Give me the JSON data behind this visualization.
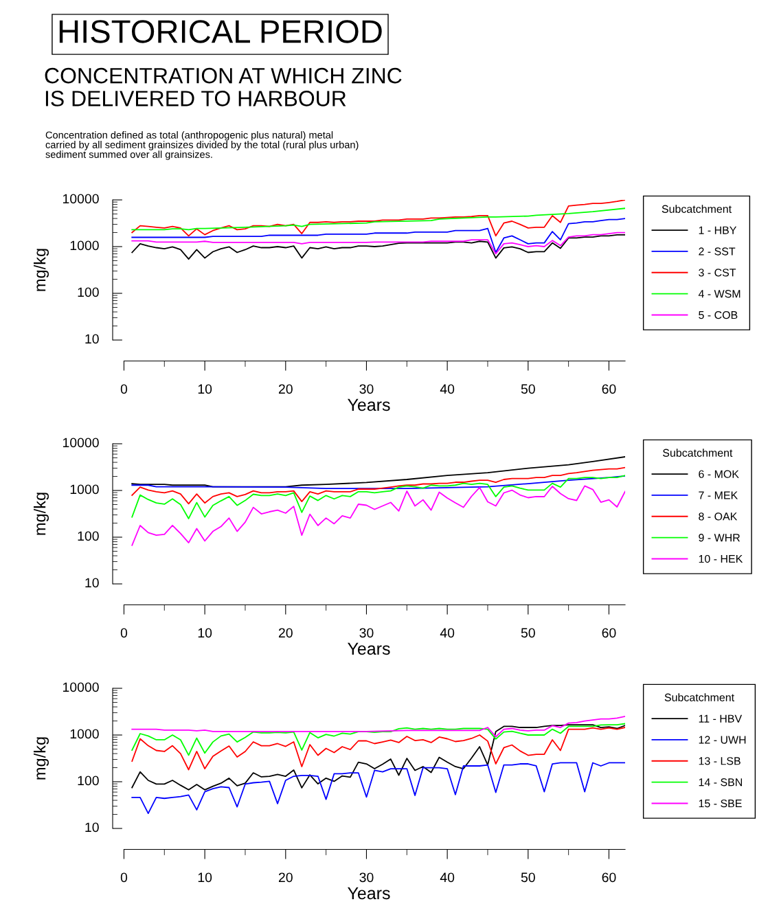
{
  "chart_data": [
    {
      "type": "line",
      "title": "HISTORICAL PERIOD",
      "subtitle": "CONCENTRATION AT WHICH ZINC\nIS DELIVERED TO HARBOUR",
      "annotations": [
        "Concentration defined as total (anthropogenic plus natural) metal\ncarried by all sediment grainsizes divided by the total (rural plus urban)\nsediment summed over all grainsizes."
      ],
      "xlabel": "Years",
      "ylabel": "mg/kg",
      "legend_title": "Subcatchment",
      "legend": "right",
      "log": "y",
      "line_style": "solid",
      "xlim": [
        -1.4,
        62
      ],
      "xticks": [
        0,
        10,
        20,
        30,
        40,
        50,
        60
      ],
      "ylim": [
        10,
        10000
      ],
      "yticks": [
        10,
        100,
        1000,
        10000
      ],
      "x": [
        1,
        2,
        3,
        4,
        5,
        6,
        7,
        8,
        9,
        10,
        11,
        12,
        13,
        14,
        15,
        16,
        17,
        18,
        19,
        20,
        21,
        22,
        23,
        24,
        25,
        26,
        27,
        28,
        29,
        30,
        31,
        32,
        33,
        34,
        35,
        36,
        37,
        38,
        39,
        40,
        41,
        42,
        43,
        44,
        45,
        46,
        47,
        48,
        49,
        50,
        51,
        52,
        53,
        54,
        55,
        56,
        57,
        58,
        59,
        60,
        61,
        62
      ],
      "series": [
        {
          "name": "1 - HBY",
          "color": "#000000",
          "values": [
            750,
            1150,
            1030,
            950,
            900,
            990,
            860,
            540,
            860,
            570,
            775,
            900,
            990,
            750,
            860,
            1030,
            950,
            950,
            1000,
            950,
            1030,
            570,
            950,
            900,
            990,
            900,
            950,
            950,
            1030,
            1030,
            1000,
            1030,
            1100,
            1180,
            1200,
            1200,
            1200,
            1200,
            1200,
            1200,
            1250,
            1250,
            1200,
            1300,
            1250,
            570,
            940,
            990,
            900,
            750,
            780,
            780,
            1200,
            920,
            1530,
            1530,
            1600,
            1600,
            1700,
            1700,
            1780,
            1780
          ]
        },
        {
          "name": "2 - SST",
          "color": "#0000ff",
          "x": [
            1,
            10,
            11,
            17,
            18,
            24,
            25,
            30,
            31,
            35,
            36,
            40,
            41,
            44,
            45,
            46,
            47,
            48,
            49,
            50,
            51,
            52,
            53,
            54,
            55,
            56,
            57,
            58,
            59,
            60,
            61,
            62
          ],
          "values": [
            1580,
            1580,
            1650,
            1650,
            1750,
            1750,
            1850,
            1850,
            1950,
            1950,
            2050,
            2050,
            2200,
            2200,
            2450,
            750,
            1530,
            1700,
            1400,
            1150,
            1200,
            1200,
            2100,
            1400,
            3100,
            3200,
            3400,
            3400,
            3600,
            3800,
            3800,
            4000
          ]
        },
        {
          "name": "3 - CST",
          "color": "#ff0000",
          "values": [
            2000,
            2800,
            2700,
            2600,
            2500,
            2700,
            2500,
            1700,
            2400,
            1800,
            2200,
            2500,
            2800,
            2300,
            2400,
            2800,
            2800,
            2700,
            3000,
            2800,
            3000,
            1900,
            3300,
            3300,
            3400,
            3300,
            3400,
            3400,
            3500,
            3500,
            3500,
            3700,
            3700,
            3700,
            3900,
            3900,
            3900,
            4100,
            4100,
            4200,
            4300,
            4300,
            4400,
            4600,
            4600,
            1700,
            3200,
            3500,
            3000,
            2500,
            2600,
            2600,
            4600,
            3300,
            7400,
            7700,
            8000,
            8400,
            8400,
            8800,
            9300,
            10000
          ]
        },
        {
          "name": "4 - WSM",
          "color": "#00ff00",
          "x": [
            1,
            5,
            6,
            7,
            8,
            9,
            10,
            15,
            20,
            21,
            22,
            23,
            30,
            31,
            38,
            39,
            45,
            46,
            50,
            51,
            55,
            58,
            62
          ],
          "values": [
            2300,
            2300,
            2400,
            2400,
            2300,
            2450,
            2450,
            2600,
            2800,
            2900,
            2700,
            3000,
            3200,
            3400,
            3600,
            3900,
            4300,
            4300,
            4500,
            4700,
            5100,
            5600,
            6600
          ]
        },
        {
          "name": "5 - COB",
          "color": "#ff00ff",
          "x": [
            1,
            3,
            4,
            9,
            10,
            11,
            21,
            22,
            23,
            30,
            31,
            37,
            38,
            42,
            43,
            44,
            45,
            46,
            47,
            48,
            49,
            50,
            51,
            52,
            53,
            54,
            55,
            56,
            57,
            58,
            59,
            60,
            61,
            62
          ],
          "values": [
            1330,
            1330,
            1250,
            1250,
            1300,
            1230,
            1230,
            1150,
            1230,
            1230,
            1250,
            1250,
            1300,
            1300,
            1400,
            1400,
            1400,
            700,
            1150,
            1200,
            1100,
            1000,
            1050,
            1000,
            1350,
            1050,
            1600,
            1700,
            1700,
            1800,
            1800,
            1900,
            2000,
            2000
          ]
        }
      ]
    },
    {
      "type": "line",
      "xlabel": "Years",
      "ylabel": "mg/kg",
      "legend_title": "Subcatchment",
      "legend": "right",
      "log": "y",
      "line_style": "solid",
      "xlim": [
        -1.4,
        62
      ],
      "xticks": [
        0,
        10,
        20,
        30,
        40,
        50,
        60
      ],
      "ylim": [
        10,
        10000
      ],
      "yticks": [
        10,
        100,
        1000,
        10000
      ],
      "x": [
        1,
        2,
        3,
        4,
        5,
        6,
        7,
        8,
        9,
        10,
        11,
        12,
        13,
        14,
        15,
        16,
        17,
        18,
        19,
        20,
        21,
        22,
        23,
        24,
        25,
        26,
        27,
        28,
        29,
        30,
        31,
        32,
        33,
        34,
        35,
        36,
        37,
        38,
        39,
        40,
        41,
        42,
        43,
        44,
        45,
        46,
        47,
        48,
        49,
        50,
        51,
        52,
        53,
        54,
        55,
        56,
        57,
        58,
        59,
        60,
        61,
        62
      ],
      "series": [
        {
          "name": "6 - MOK",
          "color": "#000000",
          "x": [
            1,
            2,
            5,
            6,
            10,
            11,
            20,
            22,
            25,
            30,
            35,
            40,
            45,
            50,
            55,
            58,
            62
          ],
          "values": [
            1400,
            1350,
            1350,
            1300,
            1300,
            1200,
            1200,
            1300,
            1350,
            1480,
            1720,
            2100,
            2400,
            3000,
            3550,
            4150,
            5250
          ]
        },
        {
          "name": "7 - MEK",
          "color": "#0000ff",
          "x": [
            1,
            3,
            4,
            10,
            20,
            25,
            35,
            40,
            45,
            50,
            55,
            60,
            62
          ],
          "values": [
            1300,
            1300,
            1200,
            1200,
            1180,
            1100,
            1100,
            1150,
            1200,
            1400,
            1650,
            1900,
            2050
          ]
        },
        {
          "name": "8 - OAK",
          "color": "#ff0000",
          "values": [
            790,
            1180,
            1020,
            940,
            890,
            980,
            840,
            520,
            840,
            540,
            740,
            840,
            890,
            740,
            820,
            980,
            890,
            890,
            940,
            940,
            980,
            580,
            940,
            840,
            980,
            940,
            940,
            940,
            1070,
            1070,
            1070,
            1120,
            1180,
            1250,
            1300,
            1300,
            1380,
            1380,
            1420,
            1420,
            1500,
            1500,
            1580,
            1660,
            1660,
            1500,
            1720,
            1800,
            1800,
            1800,
            1900,
            1900,
            2100,
            2100,
            2300,
            2400,
            2550,
            2700,
            2800,
            2900,
            2900,
            3100
          ]
        },
        {
          "name": "9 - WHR",
          "color": "#00ff00",
          "values": [
            270,
            800,
            640,
            540,
            510,
            660,
            500,
            250,
            550,
            270,
            480,
            600,
            740,
            480,
            610,
            830,
            780,
            780,
            840,
            780,
            890,
            340,
            760,
            610,
            780,
            660,
            780,
            740,
            940,
            940,
            890,
            940,
            980,
            1180,
            1250,
            1200,
            1120,
            1300,
            1250,
            1250,
            1300,
            1420,
            1350,
            1420,
            1350,
            740,
            1180,
            1250,
            1120,
            1020,
            1020,
            1020,
            1420,
            1180,
            1800,
            1800,
            1900,
            1900,
            1800,
            1900,
            1900,
            2100
          ]
        },
        {
          "name": "10 - HEK",
          "color": "#ff00ff",
          "values": [
            67,
            178,
            125,
            110,
            115,
            178,
            120,
            76,
            153,
            83,
            133,
            169,
            257,
            133,
            210,
            435,
            316,
            350,
            380,
            327,
            457,
            110,
            310,
            178,
            257,
            194,
            286,
            257,
            508,
            483,
            394,
            467,
            553,
            363,
            966,
            467,
            630,
            380,
            918,
            689,
            543,
            435,
            750,
            1160,
            572,
            467,
            888,
            1015,
            801,
            701,
            738,
            738,
            1225,
            859,
            667,
            612,
            1250,
            1050,
            562,
            630,
            444,
            950
          ]
        }
      ]
    },
    {
      "type": "line",
      "xlabel": "Years",
      "ylabel": "mg/kg",
      "legend_title": "Subcatchment",
      "legend": "right",
      "log": "y",
      "line_style": "solid",
      "xlim": [
        -1.4,
        62
      ],
      "xticks": [
        0,
        10,
        20,
        30,
        40,
        50,
        60
      ],
      "ylim": [
        10,
        10000
      ],
      "yticks": [
        10,
        100,
        1000,
        10000
      ],
      "x": [
        1,
        2,
        3,
        4,
        5,
        6,
        7,
        8,
        9,
        10,
        11,
        12,
        13,
        14,
        15,
        16,
        17,
        18,
        19,
        20,
        21,
        22,
        23,
        24,
        25,
        26,
        27,
        28,
        29,
        30,
        31,
        32,
        33,
        34,
        35,
        36,
        37,
        38,
        39,
        40,
        41,
        42,
        43,
        44,
        45,
        46,
        47,
        48,
        49,
        50,
        51,
        52,
        53,
        54,
        55,
        56,
        57,
        58,
        59,
        60,
        61,
        62
      ],
      "series": [
        {
          "name": "11 - HBV",
          "color": "#000000",
          "values": [
            75,
            163,
            107,
            89,
            89,
            107,
            84,
            67,
            87,
            67,
            80,
            93,
            119,
            82,
            93,
            155,
            127,
            131,
            143,
            131,
            178,
            74,
            140,
            90,
            119,
            102,
            133,
            125,
            262,
            241,
            190,
            237,
            305,
            138,
            316,
            175,
            211,
            158,
            333,
            262,
            211,
            190,
            321,
            562,
            229,
            1185,
            1530,
            1530,
            1450,
            1450,
            1450,
            1530,
            1600,
            1600,
            1650,
            1650,
            1650,
            1650,
            1450,
            1500,
            1380,
            1600
          ]
        },
        {
          "name": "12 - UWH",
          "color": "#0000ff",
          "values": [
            46,
            46,
            21,
            46,
            44,
            46,
            48,
            52,
            25,
            61,
            71,
            78,
            75,
            29,
            89,
            95,
            98,
            102,
            34,
            107,
            131,
            136,
            136,
            131,
            42,
            148,
            148,
            155,
            155,
            47,
            175,
            163,
            190,
            190,
            190,
            51,
            200,
            200,
            200,
            190,
            53,
            218,
            218,
            218,
            229,
            59,
            229,
            229,
            241,
            241,
            218,
            61,
            241,
            254,
            254,
            254,
            61,
            254,
            218,
            254,
            254,
            254
          ]
        },
        {
          "name": "13 - LSB",
          "color": "#ff0000",
          "values": [
            276,
            830,
            590,
            467,
            444,
            590,
            400,
            181,
            444,
            190,
            350,
            455,
            580,
            339,
            444,
            712,
            590,
            590,
            655,
            571,
            712,
            211,
            622,
            368,
            516,
            422,
            562,
            490,
            750,
            750,
            655,
            712,
            776,
            690,
            933,
            762,
            790,
            690,
            904,
            830,
            725,
            762,
            845,
            1000,
            740,
            241,
            535,
            612,
            457,
            368,
            387,
            387,
            790,
            467,
            1330,
            1330,
            1330,
            1420,
            1330,
            1420,
            1330,
            1450
          ]
        },
        {
          "name": "14 - SBN",
          "color": "#00ff00",
          "values": [
            475,
            1070,
            955,
            790,
            790,
            1000,
            790,
            370,
            860,
            410,
            710,
            955,
            1050,
            710,
            890,
            1160,
            1110,
            1110,
            1140,
            1110,
            1160,
            475,
            1130,
            870,
            1030,
            950,
            1090,
            1050,
            1180,
            1180,
            1140,
            1180,
            1180,
            1360,
            1420,
            1330,
            1380,
            1330,
            1380,
            1330,
            1330,
            1380,
            1380,
            1380,
            1330,
            820,
            1160,
            1200,
            1090,
            1000,
            1000,
            1000,
            1330,
            1090,
            1530,
            1530,
            1530,
            1530,
            1640,
            1660,
            1660,
            1750
          ]
        },
        {
          "name": "15 - SBE",
          "color": "#ff00ff",
          "x": [
            1,
            4,
            5,
            8,
            9,
            10,
            11,
            30,
            35,
            44,
            45,
            46,
            47,
            48,
            49,
            50,
            51,
            52,
            53,
            54,
            55,
            56,
            57,
            58,
            59,
            60,
            61,
            62
          ],
          "values": [
            1330,
            1330,
            1270,
            1270,
            1230,
            1270,
            1190,
            1190,
            1250,
            1250,
            1450,
            920,
            1330,
            1380,
            1270,
            1230,
            1270,
            1270,
            1580,
            1450,
            1800,
            1850,
            2000,
            2100,
            2200,
            2200,
            2300,
            2500
          ]
        }
      ]
    }
  ]
}
